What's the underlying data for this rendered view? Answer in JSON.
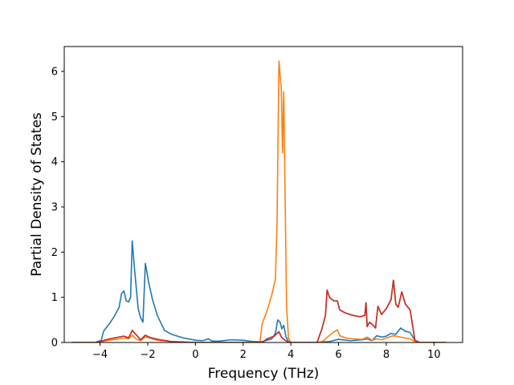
{
  "chart_data": {
    "type": "line",
    "title": "",
    "xlabel": "Frequency (THz)",
    "ylabel": "Partial Density of States",
    "xlim": [
      -5.5,
      11.2
    ],
    "ylim": [
      0,
      6.55
    ],
    "xticks": [
      -4,
      -2,
      0,
      2,
      4,
      6,
      8,
      10
    ],
    "yticks": [
      0,
      1,
      2,
      3,
      4,
      5,
      6
    ],
    "grid": false,
    "legend": "none",
    "series": [
      {
        "color": "#1f77b4",
        "points": [
          [
            -5.2,
            0
          ],
          [
            -4.2,
            0
          ],
          [
            -3.95,
            0.05
          ],
          [
            -3.85,
            0.25
          ],
          [
            -3.6,
            0.42
          ],
          [
            -3.4,
            0.58
          ],
          [
            -3.2,
            0.78
          ],
          [
            -3.1,
            1.08
          ],
          [
            -3.0,
            1.14
          ],
          [
            -2.9,
            0.92
          ],
          [
            -2.8,
            0.9
          ],
          [
            -2.72,
            1.0
          ],
          [
            -2.65,
            2.25
          ],
          [
            -2.55,
            1.6
          ],
          [
            -2.4,
            0.75
          ],
          [
            -2.3,
            0.55
          ],
          [
            -2.2,
            0.45
          ],
          [
            -2.1,
            1.75
          ],
          [
            -1.95,
            1.3
          ],
          [
            -1.8,
            0.95
          ],
          [
            -1.6,
            0.6
          ],
          [
            -1.3,
            0.27
          ],
          [
            -1.0,
            0.18
          ],
          [
            -0.5,
            0.1
          ],
          [
            0,
            0.05
          ],
          [
            0.3,
            0.04
          ],
          [
            0.55,
            0.08
          ],
          [
            0.7,
            0.03
          ],
          [
            1.0,
            0.03
          ],
          [
            1.5,
            0.06
          ],
          [
            2.0,
            0.05
          ],
          [
            2.4,
            0.02
          ],
          [
            2.8,
            0.02
          ],
          [
            3.0,
            0.05
          ],
          [
            3.2,
            0.08
          ],
          [
            3.35,
            0.2
          ],
          [
            3.45,
            0.5
          ],
          [
            3.55,
            0.45
          ],
          [
            3.62,
            0.3
          ],
          [
            3.7,
            0.38
          ],
          [
            3.8,
            0.12
          ],
          [
            3.9,
            0.02
          ],
          [
            4.0,
            0
          ],
          [
            5.0,
            0
          ],
          [
            5.3,
            0.01
          ],
          [
            5.6,
            0.02
          ],
          [
            6.0,
            0.07
          ],
          [
            6.5,
            0.04
          ],
          [
            7.0,
            0.06
          ],
          [
            7.2,
            0.08
          ],
          [
            7.4,
            0.04
          ],
          [
            7.6,
            0.15
          ],
          [
            7.8,
            0.12
          ],
          [
            8.0,
            0.14
          ],
          [
            8.2,
            0.2
          ],
          [
            8.4,
            0.18
          ],
          [
            8.6,
            0.32
          ],
          [
            8.8,
            0.25
          ],
          [
            9.0,
            0.22
          ],
          [
            9.2,
            0.05
          ],
          [
            9.4,
            0
          ],
          [
            10.5,
            0
          ]
        ]
      },
      {
        "color": "#ff7f0e",
        "points": [
          [
            -5.2,
            0
          ],
          [
            -4.2,
            0
          ],
          [
            -3.95,
            0.02
          ],
          [
            -3.6,
            0.05
          ],
          [
            -3.2,
            0.08
          ],
          [
            -3.0,
            0.1
          ],
          [
            -2.8,
            0.08
          ],
          [
            -2.65,
            0.16
          ],
          [
            -2.5,
            0.08
          ],
          [
            -2.3,
            0.04
          ],
          [
            -2.1,
            0.12
          ],
          [
            -1.9,
            0.1
          ],
          [
            -1.6,
            0.05
          ],
          [
            -1.0,
            0.02
          ],
          [
            0,
            0
          ],
          [
            2.7,
            0
          ],
          [
            2.8,
            0.42
          ],
          [
            3.0,
            0.7
          ],
          [
            3.2,
            1.05
          ],
          [
            3.35,
            1.4
          ],
          [
            3.42,
            2.6
          ],
          [
            3.5,
            6.23
          ],
          [
            3.6,
            5.6
          ],
          [
            3.65,
            4.2
          ],
          [
            3.7,
            5.55
          ],
          [
            3.76,
            3.2
          ],
          [
            3.82,
            0.8
          ],
          [
            3.9,
            0.1
          ],
          [
            4.0,
            0
          ],
          [
            5.2,
            0
          ],
          [
            5.4,
            0.05
          ],
          [
            5.6,
            0.15
          ],
          [
            5.8,
            0.23
          ],
          [
            5.95,
            0.28
          ],
          [
            6.05,
            0.15
          ],
          [
            6.3,
            0.1
          ],
          [
            6.6,
            0.08
          ],
          [
            7.0,
            0.07
          ],
          [
            7.2,
            0.12
          ],
          [
            7.4,
            0.05
          ],
          [
            7.6,
            0.08
          ],
          [
            7.8,
            0.06
          ],
          [
            8.0,
            0.1
          ],
          [
            8.3,
            0.15
          ],
          [
            8.6,
            0.12
          ],
          [
            8.8,
            0.1
          ],
          [
            9.0,
            0.08
          ],
          [
            9.2,
            0.02
          ],
          [
            9.4,
            0
          ],
          [
            10.5,
            0
          ]
        ]
      },
      {
        "color": "#2ca02c",
        "points": [
          [
            -5.2,
            0
          ],
          [
            -4.2,
            0
          ],
          [
            -3.95,
            0.03
          ],
          [
            -3.6,
            0.08
          ],
          [
            -3.2,
            0.12
          ],
          [
            -3.0,
            0.14
          ],
          [
            -2.8,
            0.1
          ],
          [
            -2.65,
            0.27
          ],
          [
            -2.5,
            0.18
          ],
          [
            -2.3,
            0.06
          ],
          [
            -2.1,
            0.16
          ],
          [
            -1.9,
            0.11
          ],
          [
            -1.6,
            0.07
          ],
          [
            -1.0,
            0.02
          ],
          [
            0,
            0
          ],
          [
            2.8,
            0
          ],
          [
            3.0,
            0.08
          ],
          [
            3.3,
            0.14
          ],
          [
            3.5,
            0.24
          ],
          [
            3.6,
            0.12
          ],
          [
            3.75,
            0.05
          ],
          [
            3.9,
            0.01
          ],
          [
            4.0,
            0
          ],
          [
            5.1,
            0
          ],
          [
            5.3,
            0.3
          ],
          [
            5.45,
            0.6
          ],
          [
            5.52,
            1.16
          ],
          [
            5.62,
            1.0
          ],
          [
            5.8,
            0.92
          ],
          [
            5.95,
            0.92
          ],
          [
            6.05,
            0.72
          ],
          [
            6.3,
            0.65
          ],
          [
            6.6,
            0.6
          ],
          [
            6.9,
            0.57
          ],
          [
            7.1,
            0.6
          ],
          [
            7.15,
            0.88
          ],
          [
            7.2,
            0.35
          ],
          [
            7.3,
            0.45
          ],
          [
            7.45,
            0.38
          ],
          [
            7.55,
            0.32
          ],
          [
            7.65,
            0.8
          ],
          [
            7.8,
            0.62
          ],
          [
            8.0,
            0.75
          ],
          [
            8.2,
            0.95
          ],
          [
            8.3,
            1.38
          ],
          [
            8.4,
            0.85
          ],
          [
            8.5,
            0.78
          ],
          [
            8.65,
            1.12
          ],
          [
            8.8,
            0.85
          ],
          [
            9.0,
            0.72
          ],
          [
            9.2,
            0.05
          ],
          [
            9.4,
            0
          ],
          [
            10.5,
            0
          ]
        ]
      },
      {
        "color": "#d62728",
        "points": [
          [
            -5.2,
            0
          ],
          [
            -4.2,
            0
          ],
          [
            -3.95,
            0.03
          ],
          [
            -3.6,
            0.08
          ],
          [
            -3.2,
            0.12
          ],
          [
            -3.0,
            0.14
          ],
          [
            -2.8,
            0.1
          ],
          [
            -2.65,
            0.27
          ],
          [
            -2.5,
            0.18
          ],
          [
            -2.3,
            0.06
          ],
          [
            -2.1,
            0.16
          ],
          [
            -1.9,
            0.11
          ],
          [
            -1.6,
            0.07
          ],
          [
            -1.0,
            0.02
          ],
          [
            0,
            0
          ],
          [
            2.8,
            0
          ],
          [
            3.0,
            0.08
          ],
          [
            3.3,
            0.14
          ],
          [
            3.5,
            0.24
          ],
          [
            3.6,
            0.12
          ],
          [
            3.75,
            0.05
          ],
          [
            3.9,
            0.01
          ],
          [
            4.0,
            0
          ],
          [
            5.1,
            0
          ],
          [
            5.3,
            0.3
          ],
          [
            5.45,
            0.6
          ],
          [
            5.52,
            1.16
          ],
          [
            5.62,
            1.0
          ],
          [
            5.8,
            0.92
          ],
          [
            5.95,
            0.92
          ],
          [
            6.05,
            0.72
          ],
          [
            6.3,
            0.65
          ],
          [
            6.6,
            0.6
          ],
          [
            6.9,
            0.57
          ],
          [
            7.1,
            0.6
          ],
          [
            7.15,
            0.88
          ],
          [
            7.2,
            0.35
          ],
          [
            7.3,
            0.45
          ],
          [
            7.45,
            0.38
          ],
          [
            7.55,
            0.32
          ],
          [
            7.65,
            0.8
          ],
          [
            7.8,
            0.62
          ],
          [
            8.0,
            0.75
          ],
          [
            8.2,
            0.95
          ],
          [
            8.3,
            1.38
          ],
          [
            8.4,
            0.85
          ],
          [
            8.5,
            0.78
          ],
          [
            8.65,
            1.12
          ],
          [
            8.8,
            0.85
          ],
          [
            9.0,
            0.72
          ],
          [
            9.2,
            0.05
          ],
          [
            9.4,
            0
          ],
          [
            10.5,
            0
          ]
        ]
      }
    ]
  }
}
